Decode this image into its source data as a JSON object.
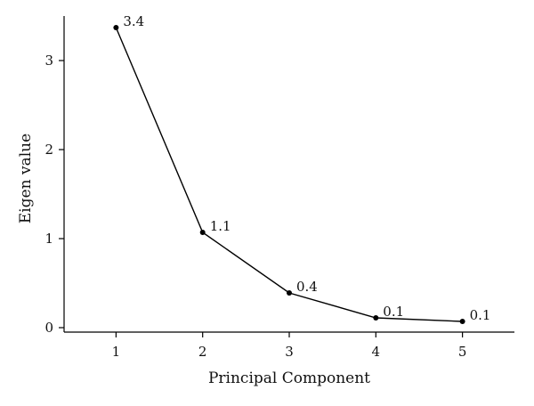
{
  "chart_data": {
    "type": "line",
    "title": "",
    "xlabel": "Principal Component",
    "ylabel": "Eigen value",
    "x": [
      1,
      2,
      3,
      4,
      5
    ],
    "series": [
      {
        "values": [
          3.37,
          1.07,
          0.39,
          0.11,
          0.07
        ]
      }
    ],
    "data_labels": [
      "3.4",
      "1.1",
      "0.4",
      "0.1",
      "0.1"
    ],
    "x_ticks": [
      "1",
      "2",
      "3",
      "4",
      "5"
    ],
    "y_ticks": [
      "0",
      "1",
      "2",
      "3"
    ],
    "xlim": [
      0.4,
      5.6
    ],
    "ylim": [
      -0.05,
      3.5
    ],
    "grid": false,
    "legend": "none",
    "colors": {
      "line": "#000000",
      "marker": "#000000"
    }
  }
}
